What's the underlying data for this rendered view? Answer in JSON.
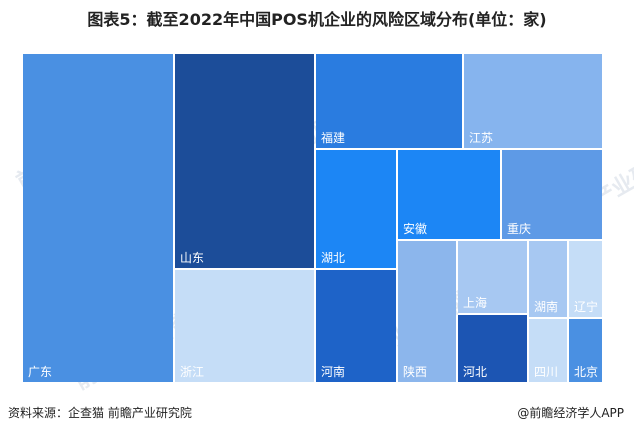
{
  "header": {
    "title": "图表5：截至2022年中国POS机企业的风险区域分布(单位：家)"
  },
  "footer": {
    "source": "资料来源：企查猫 前瞻产业研究院",
    "brand": "@前瞻经济学人APP"
  },
  "watermark": {
    "text": "前瞻产业研究院"
  },
  "chart_data": {
    "type": "treemap",
    "title": "图表5：截至2022年中国POS机企业的风险区域分布(单位：家)",
    "data_labels": false,
    "items": [
      {
        "name": "广东",
        "value": 43,
        "color": "#4a90e2"
      },
      {
        "name": "山东",
        "value": 24,
        "color": "#1c4d99"
      },
      {
        "name": "浙江",
        "value": 14,
        "color": "#c5ddf7"
      },
      {
        "name": "福建",
        "value": 9,
        "color": "#2a7ce0"
      },
      {
        "name": "江苏",
        "value": 9,
        "color": "#86b4ee"
      },
      {
        "name": "湖北",
        "value": 13,
        "color": "#1c86f5"
      },
      {
        "name": "河南",
        "value": 12,
        "color": "#1e63c8"
      },
      {
        "name": "安徽",
        "value": 7,
        "color": "#1c86f5"
      },
      {
        "name": "重庆",
        "value": 7,
        "color": "#5e9ae6"
      },
      {
        "name": "陕西",
        "value": 6,
        "color": "#8cb6ec"
      },
      {
        "name": "上海",
        "value": 3,
        "color": "#a7c8f2"
      },
      {
        "name": "河北",
        "value": 3,
        "color": "#1c55b3"
      },
      {
        "name": "湖南",
        "value": 2,
        "color": "#a7c8f2"
      },
      {
        "name": "四川",
        "value": 1.5,
        "color": "#c5ddf7"
      },
      {
        "name": "辽宁",
        "value": 1.5,
        "color": "#c5ddf7"
      },
      {
        "name": "北京",
        "value": 1.5,
        "color": "#4a90e2"
      }
    ]
  }
}
